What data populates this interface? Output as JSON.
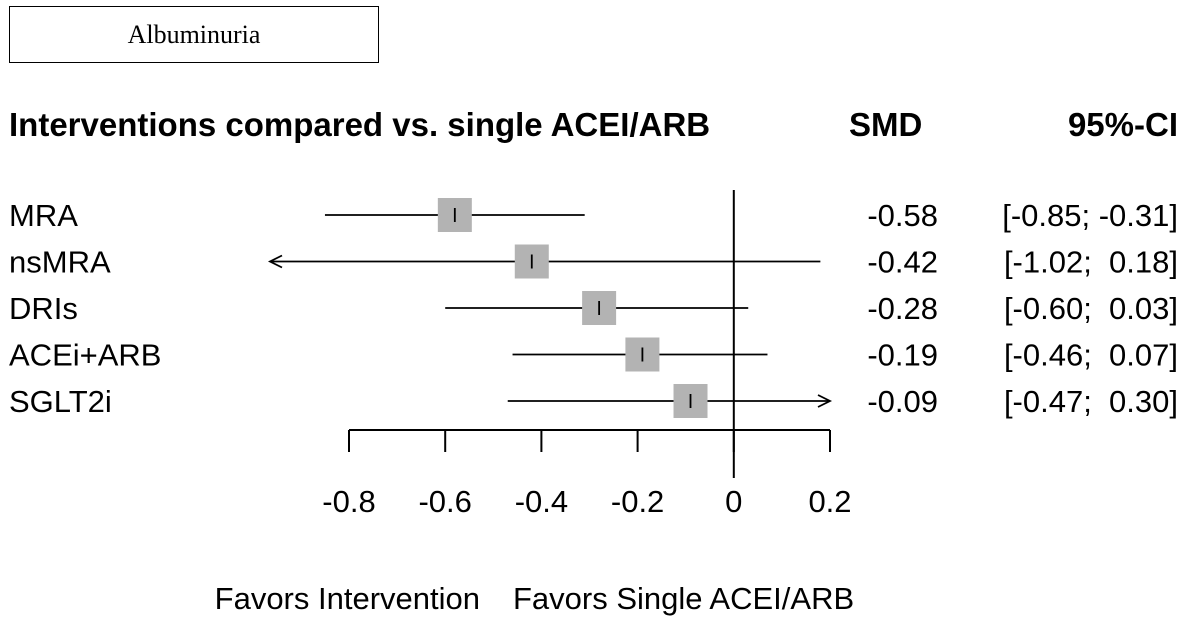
{
  "panel_label": "Albuminuria",
  "chart_data": {
    "type": "forest",
    "header": {
      "study_column": "Interventions compared vs. single ACEI/ARB",
      "estimate_column": "SMD",
      "ci_column": "95%-CI"
    },
    "rows": [
      {
        "label": "MRA",
        "smd": -0.58,
        "lower": -0.85,
        "upper": -0.31,
        "estimate_text": "-0.58",
        "ci_text": "[-0.85; -0.31]"
      },
      {
        "label": "nsMRA",
        "smd": -0.42,
        "lower": -1.02,
        "upper": 0.18,
        "estimate_text": "-0.42",
        "ci_text": "[-1.02;  0.18]"
      },
      {
        "label": "DRIs",
        "smd": -0.28,
        "lower": -0.6,
        "upper": 0.03,
        "estimate_text": "-0.28",
        "ci_text": "[-0.60;  0.03]"
      },
      {
        "label": "ACEi+ARB",
        "smd": -0.19,
        "lower": -0.46,
        "upper": 0.07,
        "estimate_text": "-0.19",
        "ci_text": "[-0.46;  0.07]"
      },
      {
        "label": "SGLT2i",
        "smd": -0.09,
        "lower": -0.47,
        "upper": 0.3,
        "estimate_text": "-0.09",
        "ci_text": "[-0.47;  0.30]"
      }
    ],
    "xlim": [
      -0.8,
      0.2
    ],
    "xticks": [
      -0.8,
      -0.6,
      -0.4,
      -0.2,
      0,
      0.2
    ],
    "xtick_labels": [
      "-0.8",
      "-0.6",
      "-0.4",
      "-0.2",
      "0",
      "0.2"
    ],
    "reference_line": 0,
    "xlabel_left": "Favors Intervention",
    "xlabel_right": "Favors Single ACEI/ARB",
    "square_color": "#b3b3b3",
    "line_color": "#000000"
  }
}
